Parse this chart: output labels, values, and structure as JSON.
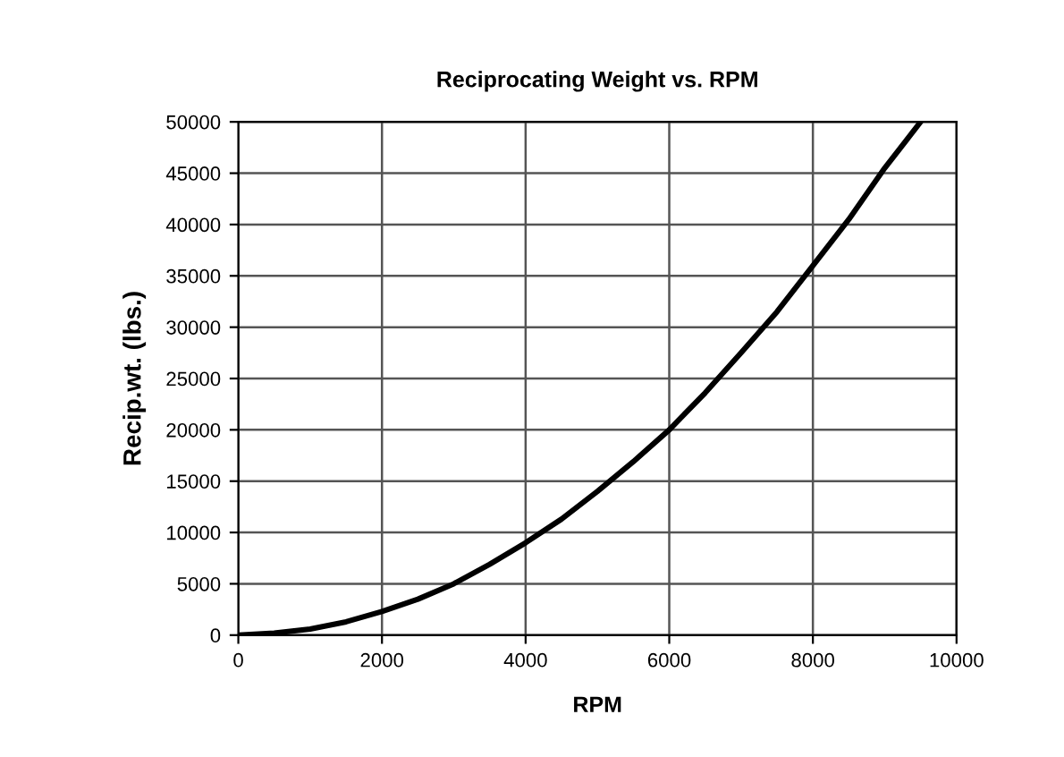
{
  "chart_data": {
    "type": "line",
    "title": "Reciprocating Weight vs. RPM",
    "xlabel": "RPM",
    "ylabel": "Recip.wt. (lbs.)",
    "x": [
      0,
      500,
      1000,
      1500,
      2000,
      2500,
      3000,
      3500,
      4000,
      4500,
      5000,
      5500,
      6000,
      6500,
      7000,
      7500,
      8000,
      8500,
      9000,
      9500
    ],
    "series": [
      {
        "color": "#000000",
        "values": [
          0,
          200,
          600,
          1300,
          2300,
          3500,
          5000,
          6900,
          9000,
          11300,
          14000,
          16900,
          20000,
          23600,
          27500,
          31500,
          36000,
          40500,
          45500,
          50000
        ]
      }
    ],
    "xlim": [
      0,
      10000
    ],
    "xticks": [
      0,
      2000,
      4000,
      6000,
      8000,
      10000
    ],
    "ylim": [
      0,
      50000
    ],
    "yticks": [
      0,
      5000,
      10000,
      15000,
      20000,
      25000,
      30000,
      35000,
      40000,
      45000,
      50000
    ],
    "grid": true,
    "marker": "none",
    "line_style": "solid"
  }
}
